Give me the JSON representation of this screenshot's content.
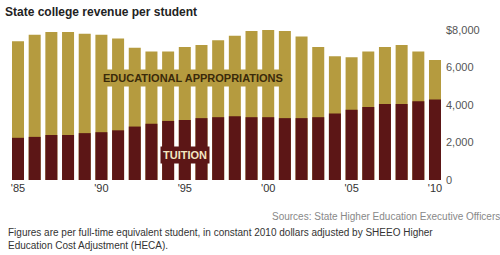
{
  "chart_data": {
    "type": "bar",
    "title": "State college revenue per student",
    "categories": [
      "'85",
      null,
      null,
      null,
      null,
      "'90",
      null,
      null,
      null,
      null,
      "'95",
      null,
      null,
      null,
      null,
      "'00",
      null,
      null,
      null,
      null,
      "'05",
      null,
      null,
      null,
      null,
      "'10"
    ],
    "series": [
      {
        "name": "EDUCATIONAL APPROPRIATIONS",
        "color": "#b59b3f",
        "values": [
          7400,
          7750,
          7900,
          7900,
          7800,
          7750,
          7550,
          7050,
          6850,
          6850,
          7100,
          7200,
          7450,
          7700,
          7950,
          8000,
          7950,
          7650,
          7100,
          6600,
          6550,
          6850,
          7100,
          7200,
          6850,
          6400
        ]
      },
      {
        "name": "TUITION",
        "color": "#5c1616",
        "values": [
          2250,
          2300,
          2400,
          2400,
          2500,
          2550,
          2650,
          2850,
          3000,
          3150,
          3200,
          3300,
          3350,
          3400,
          3350,
          3350,
          3300,
          3300,
          3350,
          3550,
          3750,
          3900,
          4050,
          4050,
          4200,
          4300
        ]
      }
    ],
    "ylim": [
      0,
      8000
    ],
    "yticks": [
      0,
      {
        "value": 2000,
        "label": "2,000"
      },
      {
        "value": 4000,
        "label": "4,000"
      },
      {
        "value": 6000,
        "label": "6,000"
      },
      {
        "value": 8000,
        "label": "$8,000"
      }
    ],
    "grid": false,
    "source": "Sources: State Higher Education Executive Officers",
    "note": [
      "Figures are per full-time equivalent student, in constant 2010 dollars adjusted by SHEEO Higher",
      "Education Cost Adjustment (HECA)."
    ]
  }
}
